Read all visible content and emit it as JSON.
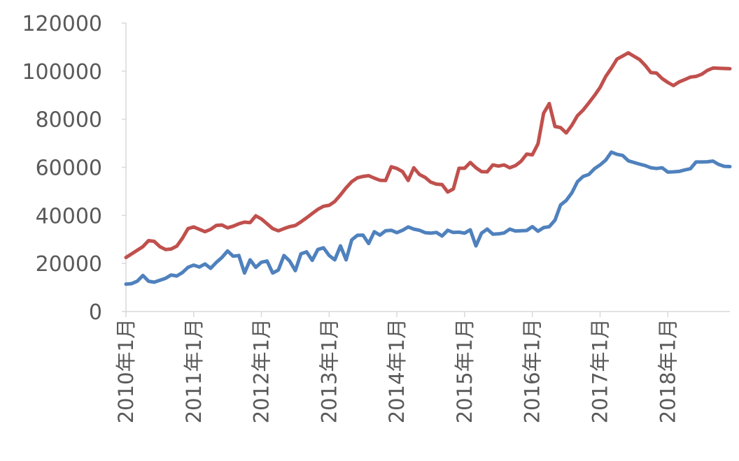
{
  "chart_data": {
    "type": "line",
    "title": "",
    "xlabel": "",
    "ylabel": "",
    "ylim": [
      0,
      120000
    ],
    "yticks": [
      "0",
      "20000",
      "40000",
      "60000",
      "80000",
      "100000",
      "120000"
    ],
    "x_range": [
      "2010-01",
      "2018-12"
    ],
    "x_tick_labels": [
      "2010年1月",
      "2011年1月",
      "2012年1月",
      "2013年1月",
      "2014年1月",
      "2015年1月",
      "2016年1月",
      "2017年1月",
      "2018年1月"
    ],
    "grid": false,
    "legend": "none",
    "series": [
      {
        "color": "#C0504D",
        "points": [
          [
            "2010-01",
            22500
          ],
          [
            "2010-04",
            27000
          ],
          [
            "2010-05",
            29500
          ],
          [
            "2010-06",
            29200
          ],
          [
            "2010-07",
            27000
          ],
          [
            "2010-08",
            25800
          ],
          [
            "2010-09",
            26000
          ],
          [
            "2010-10",
            27200
          ],
          [
            "2010-11",
            30500
          ],
          [
            "2010-12",
            34500
          ],
          [
            "2011-01",
            35200
          ],
          [
            "2011-02",
            34200
          ],
          [
            "2011-03",
            33200
          ],
          [
            "2011-04",
            34200
          ],
          [
            "2011-05",
            35800
          ],
          [
            "2011-06",
            36000
          ],
          [
            "2011-07",
            34800
          ],
          [
            "2011-08",
            35500
          ],
          [
            "2011-09",
            36500
          ],
          [
            "2011-10",
            37200
          ],
          [
            "2011-11",
            37000
          ],
          [
            "2011-12",
            39800
          ],
          [
            "2012-01",
            38500
          ],
          [
            "2012-02",
            36500
          ],
          [
            "2012-03",
            34500
          ],
          [
            "2012-04",
            33600
          ],
          [
            "2012-05",
            34500
          ],
          [
            "2012-06",
            35300
          ],
          [
            "2012-07",
            35800
          ],
          [
            "2012-08",
            37300
          ],
          [
            "2012-09",
            39000
          ],
          [
            "2012-10",
            40800
          ],
          [
            "2012-11",
            42500
          ],
          [
            "2012-12",
            43800
          ],
          [
            "2013-01",
            44200
          ],
          [
            "2013-02",
            45800
          ],
          [
            "2013-03",
            48500
          ],
          [
            "2013-04",
            51500
          ],
          [
            "2013-05",
            54000
          ],
          [
            "2013-06",
            55600
          ],
          [
            "2013-07",
            56200
          ],
          [
            "2013-08",
            56500
          ],
          [
            "2013-09",
            55500
          ],
          [
            "2013-10",
            54600
          ],
          [
            "2013-11",
            54500
          ],
          [
            "2013-12",
            60200
          ],
          [
            "2014-01",
            59500
          ],
          [
            "2014-02",
            58200
          ],
          [
            "2014-03",
            54500
          ],
          [
            "2014-04",
            59800
          ],
          [
            "2014-05",
            57000
          ],
          [
            "2014-06",
            55800
          ],
          [
            "2014-07",
            53800
          ],
          [
            "2014-08",
            53000
          ],
          [
            "2014-09",
            52800
          ],
          [
            "2014-10",
            49700
          ],
          [
            "2014-11",
            51000
          ],
          [
            "2014-12",
            59600
          ],
          [
            "2015-01",
            59600
          ],
          [
            "2015-02",
            62000
          ],
          [
            "2015-03",
            59800
          ],
          [
            "2015-04",
            58200
          ],
          [
            "2015-05",
            58100
          ],
          [
            "2015-06",
            61000
          ],
          [
            "2015-07",
            60500
          ],
          [
            "2015-08",
            61000
          ],
          [
            "2015-09",
            59800
          ],
          [
            "2015-10",
            60700
          ],
          [
            "2015-11",
            62500
          ],
          [
            "2015-12",
            65500
          ],
          [
            "2016-01",
            65200
          ],
          [
            "2016-02",
            69800
          ],
          [
            "2016-03",
            82500
          ],
          [
            "2016-04",
            86500
          ],
          [
            "2016-05",
            77000
          ],
          [
            "2016-06",
            76500
          ],
          [
            "2016-07",
            74300
          ],
          [
            "2016-08",
            77500
          ],
          [
            "2016-09",
            81500
          ],
          [
            "2016-10",
            83800
          ],
          [
            "2016-11",
            86800
          ],
          [
            "2016-12",
            89800
          ],
          [
            "2017-01",
            93200
          ],
          [
            "2017-02",
            97800
          ],
          [
            "2017-03",
            101200
          ],
          [
            "2017-04",
            105000
          ],
          [
            "2017-05",
            106300
          ],
          [
            "2017-06",
            107600
          ],
          [
            "2017-07",
            106200
          ],
          [
            "2017-08",
            104800
          ],
          [
            "2017-09",
            102400
          ],
          [
            "2017-10",
            99400
          ],
          [
            "2017-11",
            99200
          ],
          [
            "2017-12",
            96900
          ],
          [
            "2018-01",
            95300
          ],
          [
            "2018-02",
            94000
          ],
          [
            "2018-03",
            95500
          ],
          [
            "2018-04",
            96500
          ],
          [
            "2018-05",
            97500
          ],
          [
            "2018-06",
            97800
          ],
          [
            "2018-07",
            98700
          ],
          [
            "2018-08",
            100300
          ],
          [
            "2018-09",
            101300
          ],
          [
            "2018-12",
            101000
          ]
        ]
      },
      {
        "color": "#4F81BD",
        "points": [
          [
            "2010-01",
            11400
          ],
          [
            "2010-02",
            11600
          ],
          [
            "2010-03",
            12600
          ],
          [
            "2010-04",
            15000
          ],
          [
            "2010-05",
            12600
          ],
          [
            "2010-06",
            12200
          ],
          [
            "2010-07",
            13000
          ],
          [
            "2010-08",
            13800
          ],
          [
            "2010-09",
            15200
          ],
          [
            "2010-10",
            14800
          ],
          [
            "2010-11",
            16200
          ],
          [
            "2010-12",
            18400
          ],
          [
            "2011-01",
            19300
          ],
          [
            "2011-02",
            18500
          ],
          [
            "2011-03",
            19800
          ],
          [
            "2011-04",
            18000
          ],
          [
            "2011-05",
            20400
          ],
          [
            "2011-06",
            22500
          ],
          [
            "2011-07",
            25200
          ],
          [
            "2011-08",
            23000
          ],
          [
            "2011-09",
            23300
          ],
          [
            "2011-10",
            16000
          ],
          [
            "2011-11",
            21500
          ],
          [
            "2011-12",
            18400
          ],
          [
            "2012-01",
            20500
          ],
          [
            "2012-02",
            21000
          ],
          [
            "2012-03",
            16000
          ],
          [
            "2012-04",
            17300
          ],
          [
            "2012-05",
            23300
          ],
          [
            "2012-06",
            21000
          ],
          [
            "2012-07",
            17000
          ],
          [
            "2012-08",
            24000
          ],
          [
            "2012-09",
            24800
          ],
          [
            "2012-10",
            21300
          ],
          [
            "2012-11",
            25800
          ],
          [
            "2012-12",
            26500
          ],
          [
            "2013-01",
            23300
          ],
          [
            "2013-02",
            21500
          ],
          [
            "2013-03",
            27300
          ],
          [
            "2013-04",
            21500
          ],
          [
            "2013-05",
            29800
          ],
          [
            "2013-06",
            31700
          ],
          [
            "2013-07",
            31800
          ],
          [
            "2013-08",
            28300
          ],
          [
            "2013-09",
            33200
          ],
          [
            "2013-10",
            31800
          ],
          [
            "2013-11",
            33600
          ],
          [
            "2013-12",
            33800
          ],
          [
            "2014-01",
            32800
          ],
          [
            "2014-02",
            33800
          ],
          [
            "2014-03",
            35200
          ],
          [
            "2014-04",
            34300
          ],
          [
            "2014-05",
            33800
          ],
          [
            "2014-06",
            32800
          ],
          [
            "2014-07",
            32600
          ],
          [
            "2014-08",
            32900
          ],
          [
            "2014-09",
            31400
          ],
          [
            "2014-10",
            33800
          ],
          [
            "2014-11",
            32900
          ],
          [
            "2014-12",
            33000
          ],
          [
            "2015-01",
            32600
          ],
          [
            "2015-02",
            34000
          ],
          [
            "2015-03",
            27300
          ],
          [
            "2015-04",
            32600
          ],
          [
            "2015-05",
            34300
          ],
          [
            "2015-06",
            32200
          ],
          [
            "2015-07",
            32300
          ],
          [
            "2015-08",
            32700
          ],
          [
            "2015-09",
            34300
          ],
          [
            "2015-10",
            33500
          ],
          [
            "2015-11",
            33600
          ],
          [
            "2015-12",
            33700
          ],
          [
            "2016-01",
            35300
          ],
          [
            "2016-02",
            33400
          ],
          [
            "2016-03",
            34900
          ],
          [
            "2016-04",
            35300
          ],
          [
            "2016-05",
            38000
          ],
          [
            "2016-06",
            44300
          ],
          [
            "2016-07",
            46200
          ],
          [
            "2016-08",
            49400
          ],
          [
            "2016-09",
            54000
          ],
          [
            "2016-10",
            56200
          ],
          [
            "2016-11",
            57000
          ],
          [
            "2016-12",
            59400
          ],
          [
            "2017-01",
            61000
          ],
          [
            "2017-02",
            63000
          ],
          [
            "2017-03",
            66300
          ],
          [
            "2017-04",
            65400
          ],
          [
            "2017-05",
            64900
          ],
          [
            "2017-06",
            62700
          ],
          [
            "2017-07",
            62000
          ],
          [
            "2017-08",
            61300
          ],
          [
            "2017-09",
            60700
          ],
          [
            "2017-10",
            59800
          ],
          [
            "2017-11",
            59500
          ],
          [
            "2017-12",
            59800
          ],
          [
            "2018-01",
            58000
          ],
          [
            "2018-02",
            58100
          ],
          [
            "2018-03",
            58300
          ],
          [
            "2018-04",
            58900
          ],
          [
            "2018-05",
            59400
          ],
          [
            "2018-06",
            62200
          ],
          [
            "2018-07",
            62200
          ],
          [
            "2018-08",
            62300
          ],
          [
            "2018-09",
            62600
          ],
          [
            "2018-10",
            61200
          ],
          [
            "2018-11",
            60400
          ],
          [
            "2018-12",
            60300
          ]
        ]
      }
    ]
  }
}
